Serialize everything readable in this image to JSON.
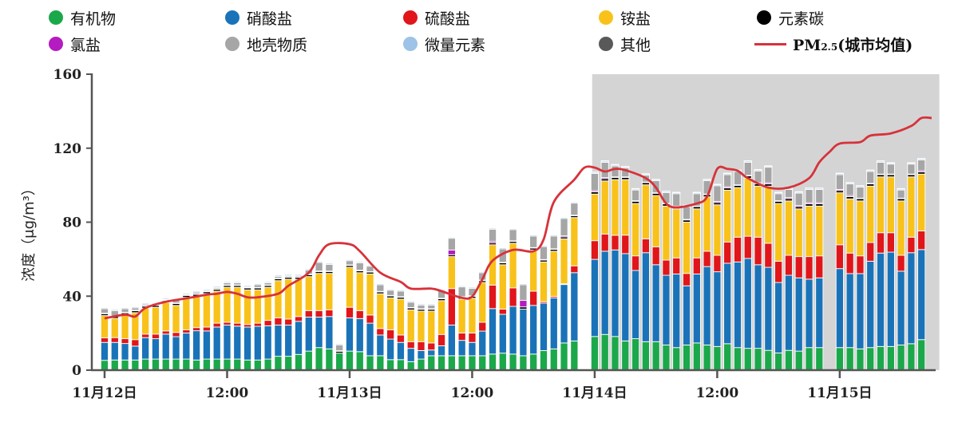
{
  "chart_data": {
    "type": "bar",
    "stacked": true,
    "title": "",
    "xlabel": "",
    "ylabel": "浓度（μg/m³）",
    "ylim": [
      0,
      160
    ],
    "yticks": [
      "0",
      "40",
      "80",
      "120",
      "160"
    ],
    "xticks": [
      {
        "t": "11-12 00:00",
        "label": "11月12日"
      },
      {
        "t": "11-12 12:00",
        "label": "12:00"
      },
      {
        "t": "11-13 00:00",
        "label": "11月13日"
      },
      {
        "t": "11-13 12:00",
        "label": "12:00"
      },
      {
        "t": "11-14 00:00",
        "label": "11月14日"
      },
      {
        "t": "11-14 12:00",
        "label": "12:00"
      },
      {
        "t": "11-15 00:00",
        "label": "11月15日"
      }
    ],
    "grid": false,
    "legend_position": "top",
    "shaded_period": {
      "start": "11-13 23:45",
      "end": "11-15 09:45",
      "color": "#d4d4d4"
    },
    "categories": [
      "11-12 00:00",
      "11-12 01:00",
      "11-12 02:00",
      "11-12 03:00",
      "11-12 04:00",
      "11-12 05:00",
      "11-12 06:00",
      "11-12 07:00",
      "11-12 08:00",
      "11-12 09:00",
      "11-12 10:00",
      "11-12 11:00",
      "11-12 12:00",
      "11-12 13:00",
      "11-12 14:00",
      "11-12 15:00",
      "11-12 16:00",
      "11-12 17:00",
      "11-12 18:00",
      "11-12 19:00",
      "11-12 20:00",
      "11-12 21:00",
      "11-12 22:00",
      "11-12 23:00",
      "11-13 00:00",
      "11-13 01:00",
      "11-13 02:00",
      "11-13 03:00",
      "11-13 04:00",
      "11-13 05:00",
      "11-13 06:00",
      "11-13 07:00",
      "11-13 08:00",
      "11-13 09:00",
      "11-13 10:00",
      "11-13 11:00",
      "11-13 12:00",
      "11-13 13:00",
      "11-13 14:00",
      "11-13 15:00",
      "11-13 16:00",
      "11-13 17:00",
      "11-13 18:00",
      "11-13 19:00",
      "11-13 20:00",
      "11-13 21:00",
      "11-13 22:00",
      "11-14 00:00",
      "11-14 01:00",
      "11-14 02:00",
      "11-14 03:00",
      "11-14 04:00",
      "11-14 05:00",
      "11-14 06:00",
      "11-14 07:00",
      "11-14 08:00",
      "11-14 09:00",
      "11-14 10:00",
      "11-14 11:00",
      "11-14 12:00",
      "11-14 13:00",
      "11-14 14:00",
      "11-14 15:00",
      "11-14 16:00",
      "11-14 17:00",
      "11-14 18:00",
      "11-14 19:00",
      "11-14 20:00",
      "11-14 21:00",
      "11-14 22:00",
      "11-15 00:00",
      "11-15 01:00",
      "11-15 02:00",
      "11-15 03:00",
      "11-15 04:00",
      "11-15 05:00",
      "11-15 06:00",
      "11-15 07:00",
      "11-15 08:00"
    ],
    "series": [
      {
        "name": "有机物",
        "color": "#1ba84a",
        "values": [
          5.3,
          5.5,
          5.5,
          5.5,
          6,
          6,
          6,
          6,
          6,
          5.5,
          6,
          6,
          6,
          6,
          5.5,
          5.5,
          6,
          7.5,
          7.5,
          8.5,
          10.3,
          12.2,
          11.5,
          9.2,
          10.3,
          10,
          7.8,
          7.8,
          5.7,
          5.7,
          4.6,
          6,
          7.8,
          7.8,
          7.8,
          7.8,
          7.8,
          7.8,
          8.7,
          9.2,
          8.7,
          7.8,
          8.7,
          10.6,
          11.5,
          14.7,
          15.8,
          18.2,
          19.3,
          18.2,
          15.8,
          17,
          15.4,
          15.4,
          13.6,
          12.2,
          13.6,
          14.7,
          13.6,
          12.8,
          14.3,
          12.2,
          11.8,
          11.8,
          10.7,
          9.3,
          10.7,
          10.3,
          12.2,
          12.2,
          12.2,
          12.2,
          11.5,
          12.2,
          12.8,
          12.8,
          13.6,
          14.3,
          16.5
        ]
      },
      {
        "name": "硝酸盐",
        "color": "#1a73b8",
        "values": [
          9.7,
          9.5,
          8.9,
          7.5,
          11.6,
          11,
          13.5,
          12.1,
          14.1,
          15.8,
          15.2,
          17.3,
          18.4,
          17.8,
          17.8,
          18.2,
          18,
          16.9,
          16.9,
          17.9,
          18.4,
          16.5,
          17.5,
          0,
          18,
          17.9,
          17.6,
          11.2,
          11.1,
          9.3,
          7.2,
          4.6,
          3.1,
          5.4,
          16.6,
          8.3,
          7.2,
          13.3,
          24.6,
          21,
          25.8,
          25.2,
          26.3,
          25.6,
          27.6,
          31.6,
          36.9,
          41.7,
          45,
          46.8,
          47.2,
          36.9,
          48.1,
          41.6,
          37.7,
          39.8,
          32,
          37.3,
          42.4,
          40.4,
          43.5,
          46.3,
          48.6,
          45.2,
          44.9,
          38.1,
          40.6,
          39.6,
          37,
          37.7,
          42.7,
          40,
          40.7,
          46.7,
          50.5,
          51,
          39.9,
          49.2,
          48.7
        ]
      },
      {
        "name": "硫酸盐",
        "color": "#e0161a",
        "values": [
          2.5,
          2.6,
          2.6,
          3.5,
          1.9,
          2.5,
          1.7,
          2.3,
          1.7,
          1.7,
          2.1,
          2.1,
          1.5,
          1.6,
          1.4,
          1.7,
          2.9,
          3.9,
          3.2,
          2.6,
          3.5,
          3.5,
          3.6,
          0,
          5.7,
          4.3,
          4.4,
          3.5,
          5,
          4,
          3.6,
          4.8,
          3.8,
          6.1,
          19.7,
          4,
          5.1,
          4.8,
          12.7,
          2.8,
          10,
          0,
          7.7,
          0.8,
          0.8,
          0.4,
          3.7,
          10.1,
          9.3,
          7.9,
          10,
          7.9,
          7.5,
          9.7,
          8.2,
          8.7,
          6.7,
          8.7,
          8.3,
          8.9,
          11.5,
          13.4,
          12,
          14.9,
          13,
          11.5,
          10.8,
          11.5,
          12.2,
          11.9,
          12.9,
          11.1,
          9.6,
          10.1,
          11,
          10.5,
          8.6,
          8.4,
          10.1
        ]
      },
      {
        "name": "铵盐",
        "color": "#f8c21a",
        "values": [
          12,
          10.4,
          13,
          14.6,
          14.1,
          14.5,
          15.4,
          14.6,
          17.6,
          17,
          18.1,
          17.3,
          18.9,
          19.4,
          18.7,
          18,
          17.9,
          20.1,
          21.6,
          20.2,
          18.4,
          20.1,
          19.7,
          0,
          21.6,
          20.5,
          22.2,
          18.8,
          17.3,
          19.4,
          17.2,
          16.5,
          17.2,
          18.3,
          17.3,
          18.3,
          18.8,
          21.5,
          21.8,
          24,
          24.1,
          0,
          22.3,
          21.5,
          24.4,
          24.3,
          26.1,
          25.2,
          28.7,
          30.1,
          30,
          28.3,
          29.2,
          27.7,
          29.2,
          26.5,
          27.7,
          26.5,
          29.4,
          27.3,
          28,
          26.8,
          31.4,
          27.6,
          30.9,
          31.2,
          29.4,
          25.8,
          27.3,
          26.9,
          28.1,
          29.3,
          29.7,
          30.5,
          30.2,
          30.2,
          29.4,
          32.6,
          30.7
        ]
      },
      {
        "name": "元素碳",
        "color": "#000000",
        "values": [
          1,
          1,
          1,
          1,
          1,
          1,
          1,
          1,
          1,
          1,
          1,
          1,
          1,
          1,
          1,
          1,
          1,
          1,
          1,
          1,
          1,
          1,
          1,
          1,
          1,
          1,
          1,
          1,
          1,
          1,
          1,
          1,
          1,
          1,
          1,
          1,
          1,
          1,
          1,
          1,
          1,
          1.2,
          1,
          1,
          1,
          1,
          1,
          1.2,
          1.2,
          1.2,
          1.2,
          1.2,
          1.2,
          1.2,
          1.2,
          1.2,
          1.2,
          1.2,
          1.2,
          1.2,
          1.2,
          1.2,
          1.2,
          1.2,
          1.2,
          1.2,
          1.2,
          1.2,
          1.2,
          1.2,
          1.2,
          1.2,
          1.2,
          1.2,
          1.2,
          1.2,
          1.2,
          1.2,
          1.2
        ]
      },
      {
        "name": "氯盐",
        "color": "#b41bc0",
        "values": [
          0.3,
          0.3,
          0.3,
          0.3,
          0.3,
          0.3,
          0.3,
          0.3,
          0.3,
          0.3,
          0.3,
          0.3,
          0.3,
          0.3,
          0.3,
          0.3,
          0.3,
          0.3,
          0.3,
          0.3,
          0.3,
          0.3,
          0.3,
          0.3,
          0.3,
          0.3,
          0.3,
          0.3,
          0.3,
          0.3,
          0.3,
          0.3,
          0.3,
          0.3,
          2.5,
          0.3,
          0.3,
          0.3,
          0.8,
          0.3,
          0.3,
          3.5,
          0.3,
          0.3,
          0.3,
          0.6,
          0.3,
          0.6,
          0.6,
          0.3,
          0.3,
          0.3,
          0.3,
          0.3,
          0.3,
          0.3,
          0.3,
          0.3,
          0.3,
          0.6,
          0.6,
          0.3,
          0.3,
          0.6,
          0.6,
          0.3,
          0.6,
          0.6,
          0.6,
          0.6,
          0.6,
          0.6,
          0.3,
          0.3,
          0.3,
          0.3,
          0.3,
          0.3,
          0.6
        ]
      },
      {
        "name": "地壳物质",
        "color": "#a6a6a6",
        "values": [
          2.4,
          2.9,
          1.9,
          1.3,
          0.8,
          0.3,
          0.3,
          1.4,
          0.3,
          0.9,
          0.5,
          0.7,
          1.1,
          1.1,
          0.5,
          1.5,
          1.1,
          1,
          0.7,
          0.7,
          2.3,
          4.6,
          3.6,
          3.2,
          2.3,
          4,
          2.9,
          3.6,
          2.8,
          3,
          2.8,
          2,
          2,
          4.3,
          6.4,
          5.3,
          4,
          4,
          6.6,
          7.3,
          6.1,
          8.5,
          6.2,
          7,
          6.9,
          9.4,
          6.5,
          9.3,
          8.3,
          5.9,
          4.9,
          5.8,
          3.7,
          6.5,
          5.8,
          6.7,
          6.9,
          6.7,
          7.2,
          8.5,
          6.6,
          7.2,
          7.1,
          6.4,
          8.4,
          3.8,
          4.4,
          6.7,
          7.2,
          7.2,
          8,
          6.3,
          6,
          6.4,
          6.4,
          5.4,
          4.4,
          5.4,
          5.9
        ]
      },
      {
        "name": "微量元素",
        "color": "#9dc3e6",
        "values": [
          0.6,
          0.6,
          0.6,
          0.6,
          0.6,
          0.6,
          0.6,
          0.6,
          0.6,
          0.6,
          0.6,
          0.6,
          0.6,
          0.6,
          0.6,
          0.6,
          0.6,
          0.6,
          0.6,
          0.6,
          0.6,
          0.6,
          0.6,
          0.6,
          0.6,
          0.6,
          0.6,
          0.6,
          0.6,
          0.6,
          0.6,
          0.6,
          0.6,
          0.6,
          0.6,
          0.6,
          0.6,
          0.6,
          0.6,
          0.6,
          0.6,
          0.6,
          0.6,
          0.6,
          0.6,
          0.6,
          0.6,
          0.6,
          0.6,
          0.6,
          0.6,
          0.6,
          0.6,
          0.6,
          0.6,
          0.6,
          0.6,
          0.6,
          0.6,
          0.6,
          0.6,
          0.6,
          0.6,
          0.6,
          0.6,
          0.6,
          0.6,
          0.6,
          0.6,
          0.6,
          0.6,
          0.6,
          0.6,
          0.6,
          0.6,
          0.6,
          0.6,
          0.6,
          0.6
        ]
      },
      {
        "name": "其他",
        "color": "#595959",
        "values": [
          0.2,
          0.2,
          0.2,
          0.2,
          0.2,
          0.2,
          0.2,
          0.2,
          0.2,
          0.2,
          0.2,
          0.2,
          0.2,
          0.2,
          0.2,
          0.2,
          0.2,
          0.2,
          0.2,
          0.2,
          0.2,
          0.2,
          0.2,
          0.2,
          0.2,
          0.2,
          0.2,
          0.2,
          0.2,
          0.2,
          0.2,
          0.2,
          0.2,
          0.2,
          0.2,
          0.2,
          0.2,
          0.2,
          0.2,
          0.2,
          0.2,
          0.2,
          0.2,
          0.2,
          0.2,
          0.2,
          0.2,
          0.2,
          0.2,
          0.2,
          0.2,
          0.2,
          0.2,
          0.2,
          0.2,
          0.2,
          0.2,
          0.2,
          0.2,
          0.2,
          0.2,
          0.2,
          0.2,
          0.2,
          0.2,
          0.2,
          0.2,
          0.2,
          0.2,
          0.2,
          0.2,
          0.2,
          0.2,
          0.2,
          0.2,
          0.2,
          0.2,
          0.2,
          0.2
        ]
      }
    ],
    "line_series": {
      "name": "PM2.5(城市均值)",
      "color": "#d7323a",
      "type": "line",
      "points": [
        [
          "11-12 00:00",
          28
        ],
        [
          "11-12 02:00",
          30
        ],
        [
          "11-12 03:00",
          29
        ],
        [
          "11-12 04:00",
          33.6
        ],
        [
          "11-12 06:00",
          37
        ],
        [
          "11-12 08:00",
          38.8
        ],
        [
          "11-12 10:00",
          40.8
        ],
        [
          "11-12 11:00",
          41.3
        ],
        [
          "11-12 12:00",
          42.3
        ],
        [
          "11-12 13:00",
          41.3
        ],
        [
          "11-12 14:00",
          39.4
        ],
        [
          "11-12 15:00",
          39.4
        ],
        [
          "11-12 17:00",
          41.3
        ],
        [
          "11-12 18:00",
          45.6
        ],
        [
          "11-12 20:00",
          52.7
        ],
        [
          "11-12 21:00",
          62.1
        ],
        [
          "11-12 22:00",
          68.1
        ],
        [
          "11-13 00:00",
          68.1
        ],
        [
          "11-13 01:00",
          64.3
        ],
        [
          "11-13 03:00",
          52.7
        ],
        [
          "11-13 05:00",
          47.7
        ],
        [
          "11-13 06:00",
          44.1
        ],
        [
          "11-13 08:00",
          44.1
        ],
        [
          "11-13 09:00",
          42.7
        ],
        [
          "11-13 11:00",
          39.1
        ],
        [
          "11-13 12:00",
          39.8
        ],
        [
          "11-13 13:00",
          49.2
        ],
        [
          "11-13 14:00",
          59.2
        ],
        [
          "11-13 16:00",
          65
        ],
        [
          "11-13 18:00",
          64.3
        ],
        [
          "11-13 19:00",
          70.7
        ],
        [
          "11-13 20:00",
          90.9
        ],
        [
          "11-13 22:00",
          103
        ],
        [
          "11-13 23:00",
          109.5
        ],
        [
          "11-14 00:00",
          109.5
        ],
        [
          "11-14 01:00",
          107.4
        ],
        [
          "11-14 02:00",
          108.8
        ],
        [
          "11-14 03:00",
          108.1
        ],
        [
          "11-14 05:00",
          103.8
        ],
        [
          "11-14 06:00",
          98.7
        ],
        [
          "11-14 07:00",
          90.1
        ],
        [
          "11-14 08:00",
          88
        ],
        [
          "11-14 10:00",
          90.1
        ],
        [
          "11-14 11:00",
          93.7
        ],
        [
          "11-14 12:00",
          108.8
        ],
        [
          "11-14 13:00",
          108.8
        ],
        [
          "11-14 14:00",
          107.8
        ],
        [
          "11-14 15:00",
          103.8
        ],
        [
          "11-14 17:00",
          98.7
        ],
        [
          "11-14 19:00",
          98.7
        ],
        [
          "11-14 21:00",
          103.8
        ],
        [
          "11-14 22:00",
          112.4
        ],
        [
          "11-14 23:00",
          118
        ],
        [
          "11-15 00:00",
          122.5
        ],
        [
          "11-15 02:00",
          123.3
        ],
        [
          "11-15 03:00",
          126.8
        ],
        [
          "11-15 05:00",
          128
        ],
        [
          "11-15 07:00",
          132
        ],
        [
          "11-15 08:00",
          136.3
        ],
        [
          "11-15 09:00",
          136.3
        ]
      ]
    }
  },
  "legend": {
    "items": [
      {
        "label": "有机物",
        "color": "#1ba84a",
        "icon": "circle"
      },
      {
        "label": "硝酸盐",
        "color": "#1a73b8",
        "icon": "circle"
      },
      {
        "label": "硫酸盐",
        "color": "#e0161a",
        "icon": "circle"
      },
      {
        "label": "铵盐",
        "color": "#f8c21a",
        "icon": "circle"
      },
      {
        "label": "元素碳",
        "color": "#000000",
        "icon": "circle"
      },
      {
        "label": "氯盐",
        "color": "#b41bc0",
        "icon": "circle"
      },
      {
        "label": "地壳物质",
        "color": "#a6a6a6",
        "icon": "circle"
      },
      {
        "label": "微量元素",
        "color": "#9dc3e6",
        "icon": "circle"
      },
      {
        "label": "其他",
        "color": "#595959",
        "icon": "circle"
      }
    ],
    "pm": {
      "prefix": "PM",
      "sub": "2.5",
      "suffix": "(城市均值)",
      "color": "#d7323a",
      "icon": "line"
    }
  }
}
